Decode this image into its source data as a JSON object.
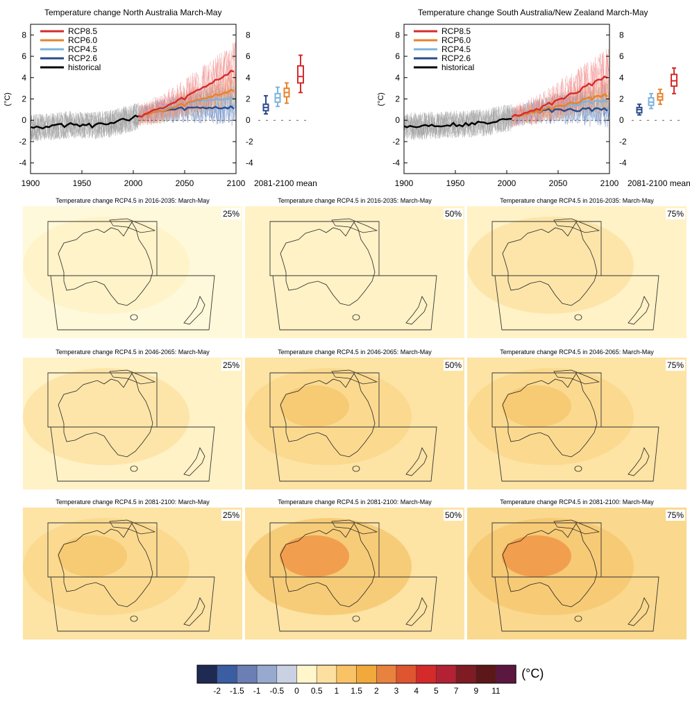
{
  "colors": {
    "rcp85": "#d62b2b",
    "rcp60": "#e8822a",
    "rcp45": "#7bb3dd",
    "rcp26": "#2c4a8c",
    "historical": "#000000"
  },
  "chart_data": [
    {
      "type": "line",
      "title": "Temperature change North Australia March-May",
      "ylabel": "(°C)",
      "xlim": [
        1900,
        2100
      ],
      "ylim": [
        -5,
        9
      ],
      "xticks": [
        "1900",
        "1950",
        "2000",
        "2050",
        "2100"
      ],
      "yticks": [
        "-4",
        "-2",
        "0",
        "2",
        "4",
        "6",
        "8"
      ],
      "legend": [
        "RCP8.5",
        "RCP6.0",
        "RCP4.5",
        "RCP2.6",
        "historical"
      ],
      "legend_position": "top-left",
      "series": [
        {
          "name": "historical",
          "x": [
            1900,
            1920,
            1940,
            1960,
            1980,
            2005
          ],
          "values": [
            -0.7,
            -0.6,
            -0.4,
            -0.5,
            -0.3,
            0.4
          ]
        },
        {
          "name": "RCP8.5",
          "x": [
            2005,
            2030,
            2050,
            2070,
            2100
          ],
          "values": [
            0.4,
            1.2,
            2.1,
            3.2,
            4.8
          ]
        },
        {
          "name": "RCP6.0",
          "x": [
            2005,
            2030,
            2050,
            2070,
            2100
          ],
          "values": [
            0.4,
            0.9,
            1.5,
            2.1,
            2.9
          ]
        },
        {
          "name": "RCP4.5",
          "x": [
            2005,
            2030,
            2050,
            2070,
            2100
          ],
          "values": [
            0.4,
            1.0,
            1.5,
            1.9,
            2.1
          ]
        },
        {
          "name": "RCP2.6",
          "x": [
            2005,
            2030,
            2050,
            2070,
            2100
          ],
          "values": [
            0.4,
            0.9,
            1.1,
            1.2,
            1.2
          ]
        }
      ],
      "boxplots_label": "2081-2100 mean",
      "boxplots": [
        {
          "name": "RCP2.6",
          "min": 0.6,
          "q1": 0.9,
          "median": 1.2,
          "q3": 1.5,
          "max": 2.3
        },
        {
          "name": "RCP4.5",
          "min": 1.3,
          "q1": 1.7,
          "median": 2.1,
          "q3": 2.5,
          "max": 3.1
        },
        {
          "name": "RCP6.0",
          "min": 1.6,
          "q1": 2.2,
          "median": 2.6,
          "q3": 3.0,
          "max": 3.5
        },
        {
          "name": "RCP8.5",
          "min": 2.6,
          "q1": 3.5,
          "median": 4.1,
          "q3": 5.1,
          "max": 6.1
        }
      ]
    },
    {
      "type": "line",
      "title": "Temperature change South Australia/New Zealand March-May",
      "ylabel": "(°C)",
      "xlim": [
        1900,
        2100
      ],
      "ylim": [
        -5,
        9
      ],
      "xticks": [
        "1900",
        "1950",
        "2000",
        "2050",
        "2100"
      ],
      "yticks": [
        "-4",
        "-2",
        "0",
        "2",
        "4",
        "6",
        "8"
      ],
      "legend": [
        "RCP8.5",
        "RCP6.0",
        "RCP4.5",
        "RCP2.6",
        "historical"
      ],
      "legend_position": "top-left",
      "series": [
        {
          "name": "historical",
          "x": [
            1900,
            1920,
            1940,
            1960,
            1980,
            2005
          ],
          "values": [
            -0.6,
            -0.5,
            -0.4,
            -0.4,
            -0.2,
            0.3
          ]
        },
        {
          "name": "RCP8.5",
          "x": [
            2005,
            2030,
            2050,
            2070,
            2100
          ],
          "values": [
            0.3,
            1.0,
            1.9,
            2.8,
            4.2
          ]
        },
        {
          "name": "RCP6.0",
          "x": [
            2005,
            2030,
            2050,
            2070,
            2100
          ],
          "values": [
            0.3,
            0.8,
            1.3,
            1.8,
            2.4
          ]
        },
        {
          "name": "RCP4.5",
          "x": [
            2005,
            2030,
            2050,
            2070,
            2100
          ],
          "values": [
            0.3,
            0.9,
            1.3,
            1.6,
            1.8
          ]
        },
        {
          "name": "RCP2.6",
          "x": [
            2005,
            2030,
            2050,
            2070,
            2100
          ],
          "values": [
            0.3,
            0.8,
            1.0,
            1.0,
            1.0
          ]
        }
      ],
      "boxplots_label": "2081-2100 mean",
      "boxplots": [
        {
          "name": "RCP2.6",
          "min": 0.5,
          "q1": 0.7,
          "median": 1.0,
          "q3": 1.2,
          "max": 1.5
        },
        {
          "name": "RCP4.5",
          "min": 1.1,
          "q1": 1.4,
          "median": 1.7,
          "q3": 2.1,
          "max": 2.5
        },
        {
          "name": "RCP6.0",
          "min": 1.5,
          "q1": 1.9,
          "median": 2.2,
          "q3": 2.5,
          "max": 2.9
        },
        {
          "name": "RCP8.5",
          "min": 2.5,
          "q1": 3.2,
          "median": 3.7,
          "q3": 4.3,
          "max": 4.9
        }
      ]
    },
    {
      "type": "heatmap",
      "panels": [
        {
          "title": "Temperature change RCP4.5 in 2016-2035: March-May",
          "percentile": "25%",
          "background_bin": "0",
          "land_bin": "0.5"
        },
        {
          "title": "Temperature change RCP4.5 in 2016-2035: March-May",
          "percentile": "50%",
          "background_bin": "0.5",
          "land_bin": "0.5"
        },
        {
          "title": "Temperature change RCP4.5 in 2016-2035: March-May",
          "percentile": "75%",
          "background_bin": "0.5",
          "land_bin": "1"
        },
        {
          "title": "Temperature change RCP4.5 in 2046-2065: March-May",
          "percentile": "25%",
          "background_bin": "0.5",
          "land_bin": "1"
        },
        {
          "title": "Temperature change RCP4.5 in 2046-2065: March-May",
          "percentile": "50%",
          "background_bin": "1",
          "land_bin": "1.5"
        },
        {
          "title": "Temperature change RCP4.5 in 2046-2065: March-May",
          "percentile": "75%",
          "background_bin": "1",
          "land_bin": "1.5"
        },
        {
          "title": "Temperature change RCP4.5 in 2081-2100: March-May",
          "percentile": "25%",
          "background_bin": "1",
          "land_bin": "1.5"
        },
        {
          "title": "Temperature change RCP4.5 in 2081-2100: March-May",
          "percentile": "50%",
          "background_bin": "1",
          "land_bin": "2"
        },
        {
          "title": "Temperature change RCP4.5 in 2081-2100: March-May",
          "percentile": "75%",
          "background_bin": "1.5",
          "land_bin": "2"
        }
      ],
      "colorbar": {
        "unit": "(°C)",
        "bins": [
          {
            "label": "-2",
            "color": "#1f2a52"
          },
          {
            "label": "-1.5",
            "color": "#3b5ea3"
          },
          {
            "label": "-1",
            "color": "#6b7fb4"
          },
          {
            "label": "-0.5",
            "color": "#98a9d0"
          },
          {
            "label": "0",
            "color": "#c9d1e2"
          },
          {
            "label": "0.5",
            "color": "#fff6cc"
          },
          {
            "label": "1",
            "color": "#fde0a0"
          },
          {
            "label": "1.5",
            "color": "#f9c264"
          },
          {
            "label": "2",
            "color": "#f0a93a"
          },
          {
            "label": "3",
            "color": "#e8823f"
          },
          {
            "label": "4",
            "color": "#df5530"
          },
          {
            "label": "5",
            "color": "#d42a2a"
          },
          {
            "label": "7",
            "color": "#b22234"
          },
          {
            "label": "9",
            "color": "#7e1b23"
          },
          {
            "label": "11",
            "color": "#5c1719"
          },
          {
            "label": "",
            "color": "#5b1740"
          }
        ]
      },
      "map_colors": {
        "0": "#fff9db",
        "0.5": "#fff2c6",
        "1": "#fde3a4",
        "1.5": "#fad88d",
        "2": "#f6c871",
        "3": "#ef9a4a"
      }
    }
  ]
}
